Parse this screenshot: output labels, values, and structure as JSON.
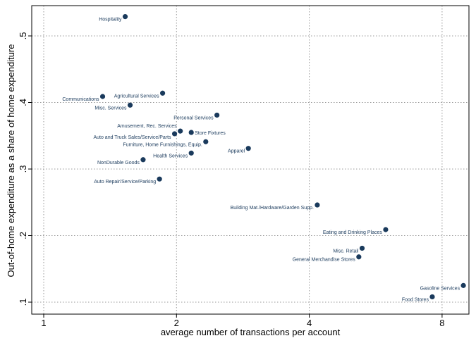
{
  "chart_data": {
    "type": "scatter",
    "title": "",
    "xlabel": "average number of transactions per account",
    "ylabel": "Out-of-home expenditure as a share of home expenditure",
    "xscale": "log2",
    "xlim": [
      0.93,
      9.2
    ],
    "ylim": [
      0.092,
      0.545
    ],
    "xticks": [
      {
        "v": 1,
        "label": "1"
      },
      {
        "v": 2,
        "label": "2"
      },
      {
        "v": 4,
        "label": "4"
      },
      {
        "v": 8,
        "label": "8"
      }
    ],
    "yticks": [
      {
        "v": 0.1,
        "label": ".1"
      },
      {
        "v": 0.2,
        "label": ".2"
      },
      {
        "v": 0.3,
        "label": ".3"
      },
      {
        "v": 0.4,
        "label": ".4"
      },
      {
        "v": 0.5,
        "label": ".5"
      }
    ],
    "grid": true,
    "marker_color": "#1a3a5c",
    "points": [
      {
        "label": "Hospitality",
        "x": 1.53,
        "y": 0.529
      },
      {
        "label": "Communications",
        "x": 1.36,
        "y": 0.409
      },
      {
        "label": "Agricultural Services",
        "x": 1.86,
        "y": 0.414
      },
      {
        "label": "Misc. Services",
        "x": 1.57,
        "y": 0.396
      },
      {
        "label": "Personal Services",
        "x": 2.47,
        "y": 0.381
      },
      {
        "label": "Amusement, Rec. Services",
        "x": 2.04,
        "y": 0.357
      },
      {
        "label": "Auto and Truck Sales/Service/Parts",
        "x": 1.98,
        "y": 0.353
      },
      {
        "label": "Store Fixtures",
        "x": 2.16,
        "y": 0.355
      },
      {
        "label": "Furniture, Home Furnishings, Equip.",
        "x": 2.33,
        "y": 0.341
      },
      {
        "label": "Health Services",
        "x": 2.16,
        "y": 0.324
      },
      {
        "label": "Apparel",
        "x": 2.91,
        "y": 0.331
      },
      {
        "label": "NonDurable Goods",
        "x": 1.68,
        "y": 0.314
      },
      {
        "label": "Auto Repair/Service/Parking",
        "x": 1.83,
        "y": 0.285
      },
      {
        "label": "Building Mat./Hardware/Garden Supp.",
        "x": 4.17,
        "y": 0.246
      },
      {
        "label": "Eating and Drinking Places",
        "x": 5.96,
        "y": 0.209
      },
      {
        "label": "Misc. Retail",
        "x": 5.27,
        "y": 0.181
      },
      {
        "label": "General Merchandise Stores",
        "x": 5.18,
        "y": 0.168
      },
      {
        "label": "Gasoline Services",
        "x": 8.94,
        "y": 0.125
      },
      {
        "label": "Food Stores",
        "x": 7.6,
        "y": 0.108
      }
    ]
  }
}
